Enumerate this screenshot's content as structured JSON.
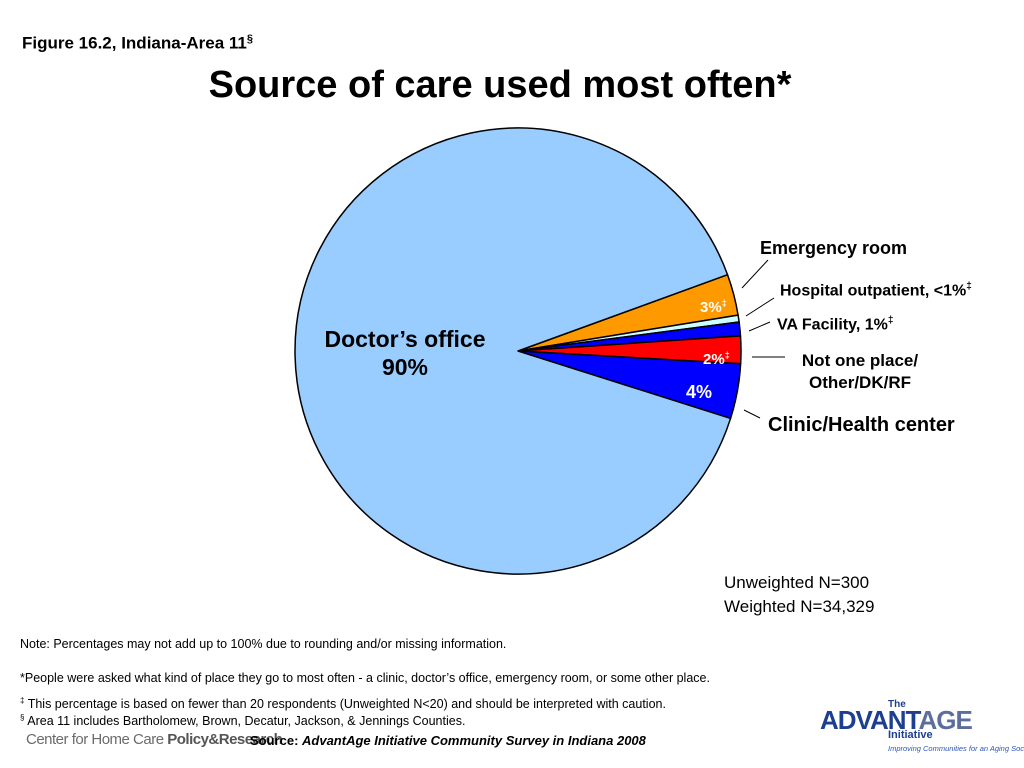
{
  "figure_label": "Figure 16.2, Indiana-Area 11",
  "figure_label_mark": "§",
  "chart_data": {
    "type": "pie",
    "title": "Source of care used most often*",
    "slices": [
      {
        "label": "Doctor’s office",
        "value": 90,
        "color": "#99ccff"
      },
      {
        "label": "Emergency room",
        "value": 3,
        "color": "#ff9900"
      },
      {
        "label": "Hospital outpatient, <1%",
        "value": 0.5,
        "color": "#ccffff"
      },
      {
        "label": "VA Facility, 1%",
        "value": 1,
        "color": "#0000ff"
      },
      {
        "label": "Not one place/ Other/DK/RF",
        "value": 2,
        "color": "#ff0000"
      },
      {
        "label": "Clinic/Health center",
        "value": 4,
        "color": "#0000ff"
      }
    ]
  },
  "labels": {
    "doctor_name": "Doctor’s office",
    "doctor_value": "90%",
    "er": "Emergency room",
    "er_value": "3%",
    "hosp": "Hospital outpatient, <1%",
    "va": "VA Facility, 1%",
    "notone_line1": "Not one place/",
    "notone_line2": "Other/DK/RF",
    "notone_value": "2%",
    "clinic": "Clinic/Health center",
    "clinic_value": "4%",
    "dagger": "‡"
  },
  "sample": {
    "unweighted": "Unweighted N=300",
    "weighted": "Weighted N=34,329"
  },
  "notes": {
    "note1": "Note: Percentages may not add up to 100% due to rounding and/or missing information.",
    "note2": "*People were asked what kind of place they go to most often - a clinic, doctor’s office, emergency room, or some other place.",
    "note3_mark": "‡",
    "note3": " This percentage is based on fewer than 20 respondents (Unweighted N<20) and should be interpreted with caution.",
    "note4_mark": "§",
    "note4": " Area 11 includes Bartholomew, Brown, Decatur, Jackson, & Jennings Counties."
  },
  "footer": {
    "cfhc_prefix": "Center for Home Care ",
    "cfhc_strong": "Policy&Research",
    "source_prefix": "Source: ",
    "source_title": "AdvantAge Initiative Community Survey in Indiana 2008",
    "adv_the": "The",
    "adv_name_a": "ADVANT",
    "adv_name_b": "AGE",
    "adv_initiative": "Initiative",
    "adv_tagline": "Improving Communities for an Aging Society"
  }
}
